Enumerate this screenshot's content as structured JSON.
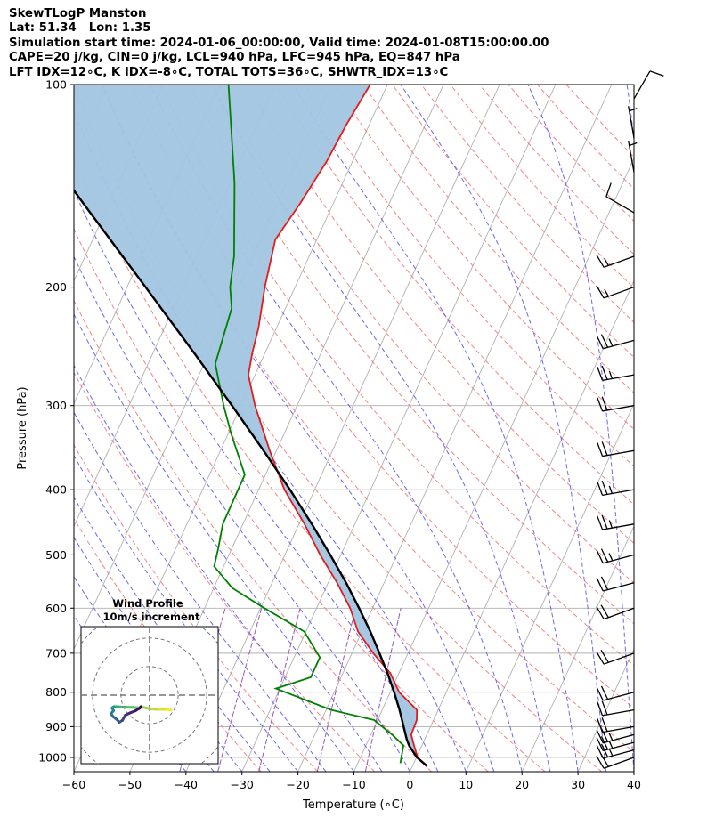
{
  "header": {
    "lines": [
      "SkewTLogP Manston",
      "Lat: 51.34   Lon: 1.35",
      "Simulation start time: 2024-01-06_00:00:00, Valid time: 2024-01-08T15:00:00.00",
      "CAPE=20 j/kg, CIN=0 j/kg, LCL=940 hPa, LFC=945 hPa, EQ=847 hPa",
      "LFT IDX=12∘C, K IDX=-8∘C, TOTAL TOTS=36∘C, SHWTR_IDX=13∘C"
    ]
  },
  "chart_data": {
    "type": "skewt",
    "xlabel": "Temperature (∘C)",
    "ylabel": "Pressure (hPa)",
    "xlim": [
      -60,
      40
    ],
    "ylim": [
      1050,
      100
    ],
    "y_scale": "log",
    "x_ticks": [
      -60,
      -50,
      -40,
      -30,
      -20,
      -10,
      0,
      10,
      20,
      30,
      40
    ],
    "x_tick_labels": [
      "−60",
      "−50",
      "−40",
      "−30",
      "−20",
      "−10",
      "0",
      "10",
      "20",
      "30",
      "40"
    ],
    "y_ticks": [
      100,
      200,
      300,
      400,
      500,
      600,
      700,
      800,
      900,
      1000
    ],
    "y_tick_labels": [
      "100",
      "200",
      "300",
      "400",
      "500",
      "600",
      "700",
      "800",
      "900",
      "1000"
    ],
    "grid": true,
    "colors": {
      "temperature": "#e41a1c",
      "dewpoint": "#008000",
      "parcel": "#000000",
      "cape_fill": "#a2c5e0",
      "isotherm": "#b0b0b0",
      "dry_adiabat": "#f07070",
      "moist_adiabat": "#5a5aee",
      "mixing_ratio": "#8e44ad"
    },
    "series": [
      {
        "key": "temperature",
        "points": [
          {
            "p": 1030,
            "t": 2.6
          },
          {
            "p": 1000,
            "t": 0.2
          },
          {
            "p": 960,
            "t": -1.4
          },
          {
            "p": 925,
            "t": -2.8
          },
          {
            "p": 880,
            "t": -3.0
          },
          {
            "p": 850,
            "t": -3.8
          },
          {
            "p": 800,
            "t": -8.4
          },
          {
            "p": 750,
            "t": -11.5
          },
          {
            "p": 700,
            "t": -16.2
          },
          {
            "p": 650,
            "t": -20.7
          },
          {
            "p": 600,
            "t": -24.0
          },
          {
            "p": 550,
            "t": -28.4
          },
          {
            "p": 500,
            "t": -33.7
          },
          {
            "p": 450,
            "t": -39.0
          },
          {
            "p": 400,
            "t": -45.4
          },
          {
            "p": 350,
            "t": -51.2
          },
          {
            "p": 300,
            "t": -57.5
          },
          {
            "p": 270,
            "t": -61.2
          },
          {
            "p": 250,
            "t": -62.3
          },
          {
            "p": 230,
            "t": -63.2
          },
          {
            "p": 200,
            "t": -65.4
          },
          {
            "p": 170,
            "t": -67.4
          },
          {
            "p": 150,
            "t": -65.9
          },
          {
            "p": 130,
            "t": -64.6
          },
          {
            "p": 115,
            "t": -64.1
          },
          {
            "p": 100,
            "t": -63.1
          }
        ]
      },
      {
        "key": "dewpoint",
        "points": [
          {
            "p": 1020,
            "t": -2.4
          },
          {
            "p": 960,
            "t": -3.3
          },
          {
            "p": 925,
            "t": -6.2
          },
          {
            "p": 880,
            "t": -10.6
          },
          {
            "p": 850,
            "t": -19.1
          },
          {
            "p": 790,
            "t": -30.7
          },
          {
            "p": 760,
            "t": -25.4
          },
          {
            "p": 710,
            "t": -25.4
          },
          {
            "p": 650,
            "t": -30.3
          },
          {
            "p": 600,
            "t": -39.3
          },
          {
            "p": 560,
            "t": -46.7
          },
          {
            "p": 520,
            "t": -51.7
          },
          {
            "p": 490,
            "t": -52.4
          },
          {
            "p": 450,
            "t": -53.6
          },
          {
            "p": 380,
            "t": -53.7
          },
          {
            "p": 330,
            "t": -59.5
          },
          {
            "p": 300,
            "t": -63.1
          },
          {
            "p": 260,
            "t": -68.0
          },
          {
            "p": 215,
            "t": -69.6
          },
          {
            "p": 200,
            "t": -71.6
          },
          {
            "p": 180,
            "t": -73.4
          },
          {
            "p": 140,
            "t": -79.3
          },
          {
            "p": 100,
            "t": -88.4
          }
        ]
      },
      {
        "key": "parcel",
        "points": [
          {
            "p": 1030,
            "t": 2.6
          },
          {
            "p": 1000,
            "t": 0.1
          },
          {
            "p": 960,
            "t": -2.3
          },
          {
            "p": 940,
            "t": -3.2
          },
          {
            "p": 900,
            "t": -4.8
          },
          {
            "p": 850,
            "t": -6.9
          },
          {
            "p": 800,
            "t": -9.3
          },
          {
            "p": 750,
            "t": -12.0
          },
          {
            "p": 700,
            "t": -15.1
          },
          {
            "p": 650,
            "t": -18.5
          },
          {
            "p": 600,
            "t": -22.4
          },
          {
            "p": 550,
            "t": -26.8
          },
          {
            "p": 500,
            "t": -31.9
          },
          {
            "p": 450,
            "t": -37.7
          },
          {
            "p": 400,
            "t": -44.4
          },
          {
            "p": 350,
            "t": -52.3
          },
          {
            "p": 300,
            "t": -61.6
          },
          {
            "p": 250,
            "t": -72.8
          },
          {
            "p": 200,
            "t": -86.7
          },
          {
            "p": 150,
            "t": -104.7
          },
          {
            "p": 100,
            "t": -129.7
          }
        ]
      }
    ],
    "wind_barbs": [
      {
        "p": 1000,
        "dir_deg": 250,
        "speed_kt": 20
      },
      {
        "p": 975,
        "dir_deg": 255,
        "speed_kt": 25
      },
      {
        "p": 950,
        "dir_deg": 255,
        "speed_kt": 25
      },
      {
        "p": 925,
        "dir_deg": 255,
        "speed_kt": 25
      },
      {
        "p": 900,
        "dir_deg": 260,
        "speed_kt": 20
      },
      {
        "p": 850,
        "dir_deg": 260,
        "speed_kt": 20
      },
      {
        "p": 800,
        "dir_deg": 255,
        "speed_kt": 20
      },
      {
        "p": 700,
        "dir_deg": 250,
        "speed_kt": 20
      },
      {
        "p": 600,
        "dir_deg": 250,
        "speed_kt": 20
      },
      {
        "p": 550,
        "dir_deg": 255,
        "speed_kt": 20
      },
      {
        "p": 500,
        "dir_deg": 255,
        "speed_kt": 25
      },
      {
        "p": 450,
        "dir_deg": 260,
        "speed_kt": 25
      },
      {
        "p": 400,
        "dir_deg": 260,
        "speed_kt": 25
      },
      {
        "p": 350,
        "dir_deg": 260,
        "speed_kt": 20
      },
      {
        "p": 300,
        "dir_deg": 260,
        "speed_kt": 20
      },
      {
        "p": 270,
        "dir_deg": 260,
        "speed_kt": 25
      },
      {
        "p": 240,
        "dir_deg": 255,
        "speed_kt": 25
      },
      {
        "p": 200,
        "dir_deg": 250,
        "speed_kt": 15
      },
      {
        "p": 180,
        "dir_deg": 250,
        "speed_kt": 15
      },
      {
        "p": 155,
        "dir_deg": 300,
        "speed_kt": 10
      },
      {
        "p": 135,
        "dir_deg": 350,
        "speed_kt": 5
      },
      {
        "p": 120,
        "dir_deg": 350,
        "speed_kt": 5
      },
      {
        "p": 105,
        "dir_deg": 30,
        "speed_kt": 10
      }
    ],
    "hodograph": {
      "title": "Wind Profile",
      "subtitle": "10m/s increment",
      "rings_ms": [
        10,
        20,
        30
      ],
      "range_ms": 24,
      "trace": [
        {
          "u": 7.5,
          "v": -5.2
        },
        {
          "u": 5.2,
          "v": -5.0
        },
        {
          "u": 2.5,
          "v": -5.0
        },
        {
          "u": 0.2,
          "v": -4.8
        },
        {
          "u": -2.5,
          "v": -4.2
        },
        {
          "u": -4.0,
          "v": -4.4
        },
        {
          "u": -6.0,
          "v": -4.3
        },
        {
          "u": -9.0,
          "v": -4.2
        },
        {
          "u": -11.0,
          "v": -4.1
        },
        {
          "u": -12.5,
          "v": -4.0
        },
        {
          "u": -13.2,
          "v": -4.5
        },
        {
          "u": -12.6,
          "v": -5.4
        },
        {
          "u": -13.5,
          "v": -6.5
        },
        {
          "u": -12.8,
          "v": -7.5
        },
        {
          "u": -11.5,
          "v": -8.5
        },
        {
          "u": -10.6,
          "v": -9.5
        },
        {
          "u": -9.5,
          "v": -8.8
        },
        {
          "u": -8.5,
          "v": -7.0
        },
        {
          "u": -6.8,
          "v": -6.2
        },
        {
          "u": -5.0,
          "v": -5.5
        },
        {
          "u": -3.5,
          "v": -4.6
        },
        {
          "u": -3.0,
          "v": -4.0
        }
      ]
    }
  }
}
